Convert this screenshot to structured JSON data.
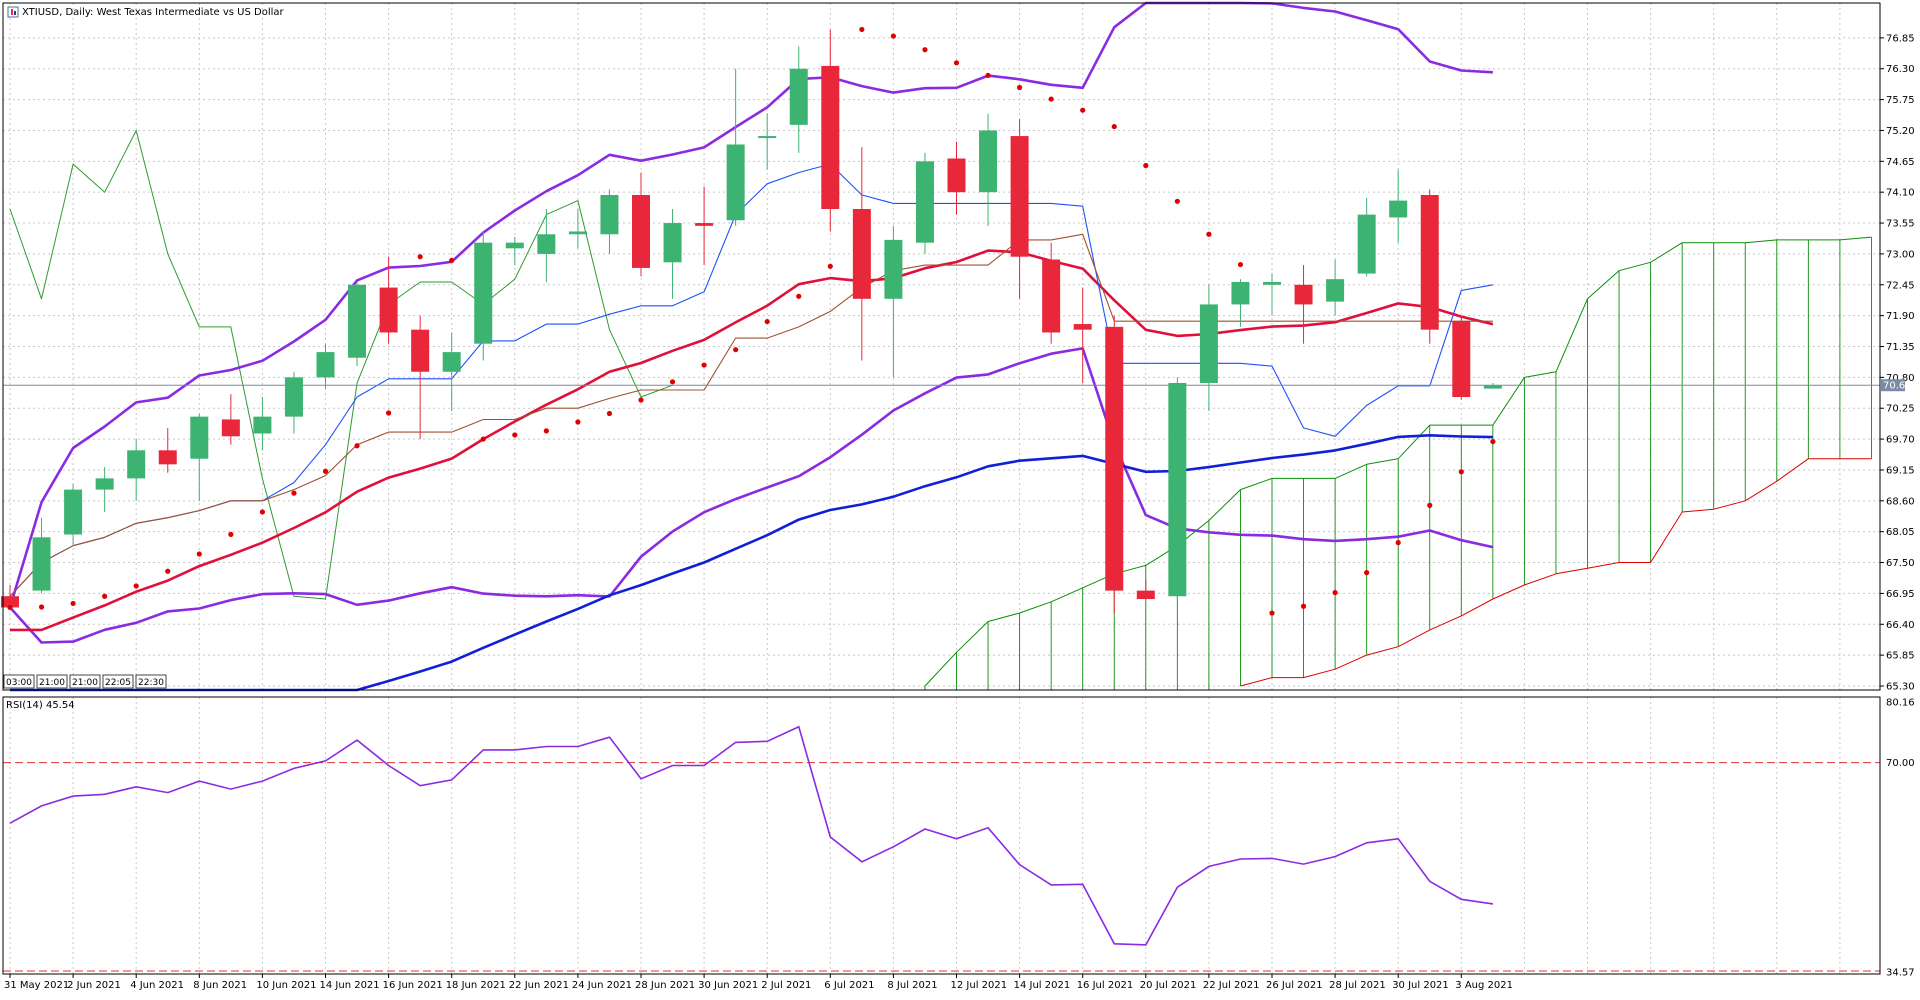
{
  "chart_data": [
    {
      "type": "candlestick",
      "title": "XTIUSD, Daily:  West Texas Intermediate vs US Dollar",
      "symbol": "XTIUSD",
      "timeframe": "Daily",
      "ylim": [
        65.3,
        77.4
      ],
      "y_ticks": [
        "76.85",
        "76.30",
        "75.75",
        "75.20",
        "74.65",
        "74.10",
        "73.55",
        "73.00",
        "72.45",
        "71.90",
        "71.35",
        "70.80",
        "70.25",
        "69.70",
        "69.15",
        "68.60",
        "68.05",
        "67.50",
        "66.95",
        "66.40",
        "65.85",
        "65.30"
      ],
      "current_price": "70.66",
      "session_labels": [
        "03:00",
        "21:00",
        "21:00",
        "22:05",
        "22:30"
      ],
      "x_tick_labels": [
        "31 May 2021",
        "2 Jun 2021",
        "4 Jun 2021",
        "8 Jun 2021",
        "10 Jun 2021",
        "14 Jun 2021",
        "16 Jun 2021",
        "18 Jun 2021",
        "22 Jun 2021",
        "24 Jun 2021",
        "28 Jun 2021",
        "30 Jun 2021",
        "2 Jul 2021",
        "6 Jul 2021",
        "8 Jul 2021",
        "12 Jul 2021",
        "14 Jul 2021",
        "16 Jul 2021",
        "20 Jul 2021",
        "22 Jul 2021",
        "26 Jul 2021",
        "28 Jul 2021",
        "30 Jul 2021",
        "3 Aug 2021"
      ],
      "candles": [
        {
          "o": 66.9,
          "h": 67.1,
          "l": 66.7,
          "c": 66.7
        },
        {
          "o": 67.0,
          "h": 68.3,
          "l": 66.95,
          "c": 67.95
        },
        {
          "o": 68.0,
          "h": 68.9,
          "l": 67.8,
          "c": 68.8
        },
        {
          "o": 68.8,
          "h": 69.2,
          "l": 68.4,
          "c": 69.0
        },
        {
          "o": 69.0,
          "h": 69.7,
          "l": 68.6,
          "c": 69.5
        },
        {
          "o": 69.5,
          "h": 69.9,
          "l": 69.1,
          "c": 69.25
        },
        {
          "o": 69.35,
          "h": 70.15,
          "l": 68.6,
          "c": 70.1
        },
        {
          "o": 70.05,
          "h": 70.5,
          "l": 69.6,
          "c": 69.75
        },
        {
          "o": 69.8,
          "h": 70.45,
          "l": 69.5,
          "c": 70.1
        },
        {
          "o": 70.1,
          "h": 70.9,
          "l": 69.8,
          "c": 70.8
        },
        {
          "o": 70.8,
          "h": 71.4,
          "l": 70.6,
          "c": 71.25
        },
        {
          "o": 71.15,
          "h": 72.5,
          "l": 71.0,
          "c": 72.45
        },
        {
          "o": 72.4,
          "h": 72.95,
          "l": 71.4,
          "c": 71.6
        },
        {
          "o": 71.65,
          "h": 71.9,
          "l": 69.7,
          "c": 70.9
        },
        {
          "o": 70.9,
          "h": 71.6,
          "l": 70.2,
          "c": 71.25
        },
        {
          "o": 71.4,
          "h": 73.4,
          "l": 71.1,
          "c": 73.2
        },
        {
          "o": 73.1,
          "h": 73.3,
          "l": 72.8,
          "c": 73.2
        },
        {
          "o": 73.0,
          "h": 73.8,
          "l": 72.5,
          "c": 73.35
        },
        {
          "o": 73.35,
          "h": 73.8,
          "l": 73.1,
          "c": 73.4
        },
        {
          "o": 73.35,
          "h": 74.15,
          "l": 73.0,
          "c": 74.05
        },
        {
          "o": 74.05,
          "h": 74.45,
          "l": 72.6,
          "c": 72.75
        },
        {
          "o": 72.85,
          "h": 73.8,
          "l": 72.2,
          "c": 73.55
        },
        {
          "o": 73.55,
          "h": 74.2,
          "l": 72.8,
          "c": 73.5
        },
        {
          "o": 73.6,
          "h": 76.3,
          "l": 73.5,
          "c": 74.95
        },
        {
          "o": 75.1,
          "h": 75.5,
          "l": 74.5,
          "c": 75.1
        },
        {
          "o": 75.3,
          "h": 76.7,
          "l": 74.8,
          "c": 76.3
        },
        {
          "o": 76.35,
          "h": 77.0,
          "l": 73.4,
          "c": 73.8
        },
        {
          "o": 73.8,
          "h": 74.9,
          "l": 71.1,
          "c": 72.2
        },
        {
          "o": 72.2,
          "h": 73.5,
          "l": 70.8,
          "c": 73.25
        },
        {
          "o": 73.2,
          "h": 74.8,
          "l": 73.0,
          "c": 74.65
        },
        {
          "o": 74.7,
          "h": 75.0,
          "l": 73.7,
          "c": 74.1
        },
        {
          "o": 74.1,
          "h": 75.5,
          "l": 73.5,
          "c": 75.2
        },
        {
          "o": 75.1,
          "h": 75.4,
          "l": 72.2,
          "c": 72.95
        },
        {
          "o": 72.9,
          "h": 73.2,
          "l": 71.4,
          "c": 71.6
        },
        {
          "o": 71.75,
          "h": 72.4,
          "l": 70.7,
          "c": 71.65
        },
        {
          "o": 71.7,
          "h": 71.9,
          "l": 66.6,
          "c": 67.0
        },
        {
          "o": 67.0,
          "h": 67.2,
          "l": 66.85,
          "c": 66.85
        },
        {
          "o": 66.9,
          "h": 70.8,
          "l": 66.8,
          "c": 70.7
        },
        {
          "o": 70.7,
          "h": 72.45,
          "l": 70.2,
          "c": 72.1
        },
        {
          "o": 72.1,
          "h": 72.55,
          "l": 71.7,
          "c": 72.5
        },
        {
          "o": 72.45,
          "h": 72.65,
          "l": 71.9,
          "c": 72.5
        },
        {
          "o": 72.45,
          "h": 72.8,
          "l": 71.4,
          "c": 72.1
        },
        {
          "o": 72.15,
          "h": 72.9,
          "l": 71.9,
          "c": 72.55
        },
        {
          "o": 72.65,
          "h": 74.0,
          "l": 72.6,
          "c": 73.7
        },
        {
          "o": 73.65,
          "h": 74.5,
          "l": 73.2,
          "c": 73.95
        },
        {
          "o": 74.05,
          "h": 74.15,
          "l": 71.4,
          "c": 71.65
        },
        {
          "o": 71.8,
          "h": 71.9,
          "l": 70.4,
          "c": 70.45
        },
        {
          "o": 70.6,
          "h": 70.7,
          "l": 70.6,
          "c": 70.66
        }
      ],
      "ichimoku": {
        "tenkan": [
          null,
          null,
          72.2,
          74.6,
          74.1,
          75.2,
          73.0,
          71.7,
          71.7,
          69.0,
          66.9,
          70.2,
          72.1,
          72.55,
          72.5,
          73.4,
          73.8,
          73.6,
          70.5,
          70.7
        ],
        "kijun": [
          null,
          null,
          null,
          null,
          null,
          null,
          null,
          null,
          null,
          null,
          null,
          null,
          null,
          null,
          null,
          null,
          null,
          null,
          null,
          null,
          null,
          null,
          65.3,
          65.4,
          65.6,
          65.9,
          66.1,
          66.3,
          66.4,
          66.4,
          66.9,
          67.1,
          67.2,
          67.2,
          67.4,
          67.5,
          67.8,
          68.0,
          68.3,
          68.6,
          68.9,
          69.1,
          69.1,
          69.1,
          69.7,
          69.7,
          69.7,
          70.6,
          70.7,
          70.7,
          70.7,
          70.7,
          70.7,
          70.7,
          70.7,
          70.7,
          70.7,
          70.7,
          70.7,
          70.7
        ],
        "chikou_note": "lagging span"
      },
      "bollinger": {
        "period": 20
      },
      "moving_averages": [
        {
          "name": "MA fast",
          "color": "#e0103a"
        },
        {
          "name": "MA slow",
          "color": "#1020d8"
        }
      ],
      "parabolic_sar_color": "#e00000",
      "colors": {
        "bull": "#3cb371",
        "bear": "#e8273a",
        "bollinger": "#8a2be2",
        "tenkan": "#1e50ff",
        "kijun": "#a0522d",
        "cloud_a": "#0a8f0a",
        "cloud_b": "#e00000",
        "chikou": "#2e9b2e"
      }
    },
    {
      "type": "line",
      "title": "RSI(14) 45.54",
      "ylim": [
        34.57,
        80.16
      ],
      "y_ticks": [
        "80.16",
        "70.00",
        "34.57"
      ],
      "levels": [
        70,
        30
      ],
      "color": "#8a2be2",
      "values": [
        59.5,
        62.5,
        64.2,
        64.5,
        65.8,
        64.8,
        66.8,
        65.4,
        66.8,
        69.0,
        70.3,
        73.9,
        69.5,
        66.0,
        67.0,
        72.2,
        72.2,
        72.8,
        72.8,
        74.4,
        67.2,
        69.5,
        69.5,
        73.5,
        73.7,
        76.2,
        57.1,
        52.8,
        55.4,
        58.5,
        56.8,
        58.7,
        52.3,
        48.8,
        48.9,
        38.6,
        38.4,
        48.4,
        52.0,
        53.3,
        53.4,
        52.4,
        53.7,
        56.1,
        56.8,
        49.4,
        46.3,
        45.5
      ]
    }
  ]
}
